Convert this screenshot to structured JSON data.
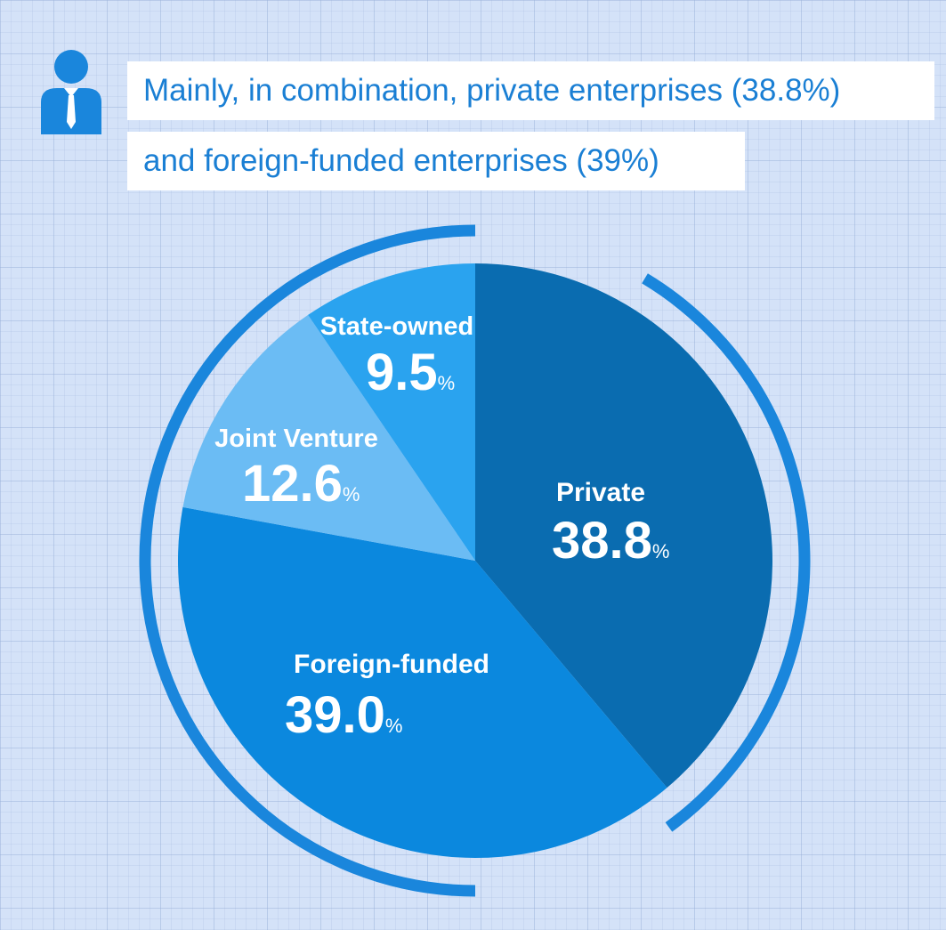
{
  "header": {
    "line1": "Mainly, in combination, private enterprises (38.8%)",
    "line2": "and foreign-funded enterprises (39%)",
    "icon": "person-businessman-icon"
  },
  "colors": {
    "background": "#d4e2f8",
    "accent": "#1a7fd4",
    "ring": "#1a86dc"
  },
  "chart_data": {
    "type": "pie",
    "unit": "%",
    "start": "12 o'clock, clockwise",
    "slices": [
      {
        "label": "Private",
        "value": 38.8,
        "value_text": "38.8",
        "color": "#0a6cb0"
      },
      {
        "label": "Foreign-funded",
        "value": 39.0,
        "value_text": "39.0",
        "color": "#0b88de"
      },
      {
        "label": "Joint Venture",
        "value": 12.6,
        "value_text": "12.6",
        "color": "#6bbcf4"
      },
      {
        "label": "State-owned",
        "value": 9.5,
        "value_text": "9.5",
        "color": "#2aa3ef"
      }
    ]
  }
}
